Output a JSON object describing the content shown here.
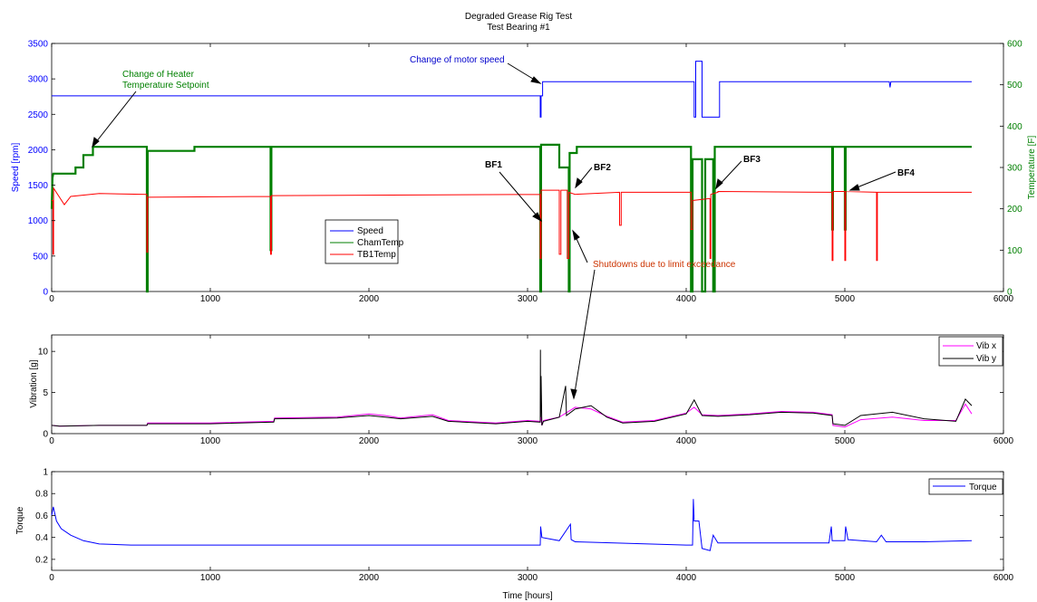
{
  "figure": {
    "title_line1": "Degraded Grease Rig Test",
    "title_line2": "Test Bearing #1",
    "xlabel": "Time [hours]"
  },
  "colors": {
    "speed": "#0000ff",
    "chamtemp": "#007f00",
    "tb1temp": "#ff0000",
    "vibx": "#ff00ff",
    "viby": "#000000",
    "torque": "#0000ff",
    "annotation_heater": "#008000",
    "annotation_motor": "#0000cc",
    "annotation_shutdown": "#cc3300"
  },
  "chart_data": [
    {
      "type": "line",
      "ylabel_left": "Speed [rpm]",
      "ylabel_right": "Temperature [F]",
      "xlim": [
        0,
        6000
      ],
      "ylim_left": [
        0,
        3500
      ],
      "ylim_right": [
        0,
        600
      ],
      "xticks": [
        "0",
        "1000",
        "2000",
        "3000",
        "4000",
        "5000",
        "6000"
      ],
      "yticks_left": [
        "0",
        "500",
        "1000",
        "1500",
        "2000",
        "2500",
        "3000",
        "3500"
      ],
      "yticks_right": [
        "0",
        "100",
        "200",
        "300",
        "400",
        "500",
        "600"
      ],
      "legend": [
        "Speed",
        "ChamTemp",
        "TB1Temp"
      ],
      "legend_position": "center-left",
      "series": [
        {
          "name": "Speed",
          "axis": "left",
          "x": [
            0,
            3080,
            3080,
            3085,
            3085,
            3095,
            3095,
            4050,
            4050,
            4060,
            4060,
            4100,
            4100,
            4110,
            4110,
            4210,
            4210,
            5280,
            5285,
            5290,
            5800
          ],
          "y": [
            2760,
            2760,
            2460,
            2460,
            2760,
            2760,
            2960,
            2960,
            2460,
            2460,
            3250,
            3250,
            2460,
            2460,
            2460,
            2460,
            2960,
            2960,
            2880,
            2960,
            2960
          ]
        },
        {
          "name": "ChamTemp",
          "axis": "right",
          "x": [
            0,
            5,
            10,
            150,
            150,
            200,
            200,
            260,
            260,
            600,
            600,
            605,
            605,
            900,
            900,
            1380,
            1380,
            1385,
            1385,
            3080,
            3080,
            3085,
            3085,
            3200,
            3200,
            3260,
            3260,
            3265,
            3265,
            3310,
            3310,
            4030,
            4030,
            4040,
            4040,
            4100,
            4100,
            4120,
            4120,
            4170,
            4170,
            4180,
            4180,
            4920,
            4920,
            4925,
            4925,
            5000,
            5000,
            5005,
            5005,
            5800
          ],
          "y": [
            200,
            275,
            285,
            285,
            300,
            300,
            330,
            330,
            350,
            350,
            0,
            0,
            340,
            340,
            350,
            350,
            100,
            100,
            350,
            350,
            0,
            0,
            355,
            355,
            300,
            300,
            0,
            0,
            335,
            335,
            350,
            350,
            0,
            0,
            320,
            320,
            0,
            0,
            320,
            320,
            0,
            0,
            350,
            350,
            150,
            150,
            350,
            350,
            150,
            150,
            350,
            350
          ]
        },
        {
          "name": "TB1Temp",
          "axis": "right",
          "x": [
            0,
            8,
            8,
            12,
            12,
            80,
            120,
            300,
            600,
            600,
            605,
            605,
            1380,
            1380,
            1385,
            1385,
            3080,
            3080,
            3085,
            3085,
            3200,
            3200,
            3210,
            3210,
            3250,
            3250,
            3260,
            3260,
            3300,
            3580,
            3580,
            3590,
            3590,
            4030,
            4030,
            4040,
            4040,
            4150,
            4150,
            4155,
            4155,
            4200,
            4200,
            4920,
            4920,
            4925,
            4925,
            5000,
            5000,
            5005,
            5005,
            5200,
            5200,
            5205,
            5205,
            5800
          ],
          "y": [
            220,
            220,
            90,
            90,
            250,
            210,
            230,
            237,
            235,
            95,
            95,
            228,
            230,
            90,
            90,
            232,
            235,
            80,
            80,
            245,
            245,
            90,
            90,
            245,
            245,
            80,
            80,
            240,
            235,
            240,
            160,
            160,
            240,
            240,
            150,
            150,
            220,
            225,
            80,
            80,
            235,
            240,
            242,
            240,
            75,
            75,
            242,
            242,
            75,
            75,
            242,
            240,
            75,
            75,
            240,
            240
          ]
        }
      ],
      "annotations": [
        {
          "text_line1": "Change of Heater",
          "text_line2": "Temperature Setpoint"
        },
        {
          "text": "Change of motor speed"
        },
        {
          "text": "BF1"
        },
        {
          "text": "BF2"
        },
        {
          "text": "BF3"
        },
        {
          "text": "BF4"
        },
        {
          "text": "Shutdowns due to limit exceedance"
        }
      ]
    },
    {
      "type": "line",
      "ylabel": "Vibration [g]",
      "xlim": [
        0,
        6000
      ],
      "ylim": [
        0,
        12
      ],
      "xticks": [
        "0",
        "1000",
        "2000",
        "3000",
        "4000",
        "5000",
        "6000"
      ],
      "yticks": [
        "0",
        "5",
        "10"
      ],
      "legend": [
        "Vib x",
        "Vib y"
      ],
      "legend_position": "top-right",
      "series": [
        {
          "name": "Vib x",
          "x": [
            0,
            50,
            300,
            600,
            605,
            1000,
            1400,
            1405,
            1800,
            2000,
            2100,
            2200,
            2400,
            2500,
            2800,
            3000,
            3080,
            3085,
            3090,
            3100,
            3200,
            3300,
            3400,
            3500,
            3600,
            3800,
            4000,
            4050,
            4100,
            4200,
            4400,
            4600,
            4800,
            4920,
            4925,
            5000,
            5100,
            5300,
            5500,
            5700,
            5760,
            5800
          ],
          "y": [
            1.0,
            0.9,
            1.0,
            1.0,
            1.3,
            1.3,
            1.5,
            1.9,
            2.0,
            2.4,
            2.2,
            1.9,
            2.3,
            1.6,
            1.3,
            1.6,
            1.5,
            2.0,
            1.0,
            1.6,
            2.0,
            3.2,
            3.0,
            2.1,
            1.4,
            1.6,
            2.5,
            3.2,
            2.3,
            2.2,
            2.4,
            2.7,
            2.6,
            2.3,
            1.0,
            0.8,
            1.7,
            2.0,
            1.6,
            1.6,
            3.6,
            2.4
          ]
        },
        {
          "name": "Vib y",
          "x": [
            0,
            50,
            300,
            600,
            605,
            1000,
            1400,
            1405,
            1800,
            2000,
            2100,
            2200,
            2400,
            2500,
            2800,
            3000,
            3080,
            3081,
            3082,
            3085,
            3090,
            3100,
            3200,
            3240,
            3245,
            3300,
            3400,
            3500,
            3600,
            3800,
            4000,
            4050,
            4100,
            4200,
            4400,
            4600,
            4800,
            4920,
            4925,
            5000,
            5100,
            5300,
            5500,
            5700,
            5760,
            5800
          ],
          "y": [
            1.0,
            0.9,
            1.0,
            1.0,
            1.2,
            1.2,
            1.4,
            1.8,
            1.9,
            2.2,
            2.0,
            1.8,
            2.1,
            1.5,
            1.2,
            1.5,
            1.4,
            10.2,
            2.0,
            7.0,
            1.0,
            1.5,
            2.0,
            5.8,
            2.2,
            3.0,
            3.4,
            2.0,
            1.3,
            1.5,
            2.4,
            4.1,
            2.2,
            2.1,
            2.3,
            2.6,
            2.5,
            2.2,
            1.2,
            1.0,
            2.2,
            2.6,
            1.8,
            1.5,
            4.2,
            3.4
          ]
        }
      ]
    },
    {
      "type": "line",
      "ylabel": "Torque",
      "xlim": [
        0,
        6000
      ],
      "ylim": [
        0.1,
        1
      ],
      "xticks": [
        "0",
        "1000",
        "2000",
        "3000",
        "4000",
        "5000",
        "6000"
      ],
      "yticks": [
        "0.2",
        "0.4",
        "0.6",
        "0.8",
        "1"
      ],
      "legend": [
        "Torque"
      ],
      "legend_position": "top-right",
      "series": [
        {
          "name": "Torque",
          "x": [
            0,
            10,
            30,
            60,
            120,
            200,
            300,
            500,
            1000,
            2000,
            3000,
            3080,
            3082,
            3090,
            3200,
            3270,
            3275,
            3300,
            4000,
            4040,
            4045,
            4050,
            4080,
            4100,
            4150,
            4170,
            4200,
            4900,
            4915,
            4920,
            5000,
            5005,
            5020,
            5200,
            5230,
            5260,
            5500,
            5800
          ],
          "y": [
            0.6,
            0.68,
            0.55,
            0.48,
            0.42,
            0.37,
            0.34,
            0.33,
            0.33,
            0.33,
            0.33,
            0.33,
            0.5,
            0.4,
            0.37,
            0.52,
            0.38,
            0.36,
            0.33,
            0.33,
            0.75,
            0.55,
            0.55,
            0.3,
            0.28,
            0.42,
            0.35,
            0.35,
            0.5,
            0.37,
            0.37,
            0.5,
            0.38,
            0.36,
            0.42,
            0.36,
            0.36,
            0.37
          ]
        }
      ]
    }
  ]
}
